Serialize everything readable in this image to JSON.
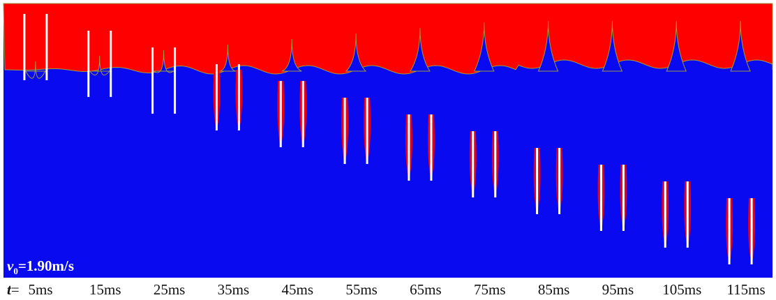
{
  "velocity_label": {
    "symbol": "v",
    "subscript": "0",
    "text": "=1.90m/s"
  },
  "time_prefix": {
    "symbol": "t",
    "text": "="
  },
  "times": [
    "5ms",
    "15ms",
    "25ms",
    "35ms",
    "45ms",
    "55ms",
    "65ms",
    "75ms",
    "85ms",
    "95ms",
    "105ms",
    "115ms"
  ]
}
